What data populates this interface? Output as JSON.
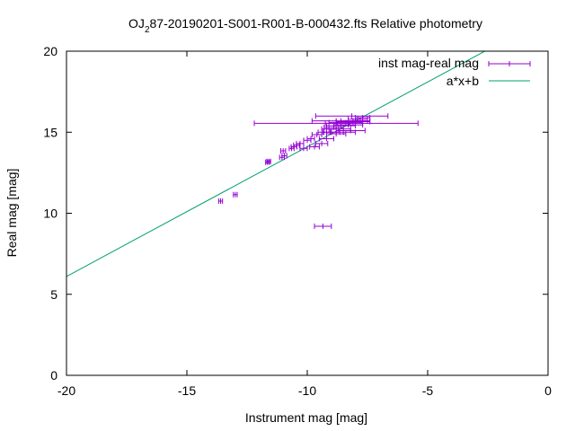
{
  "chart_data": {
    "type": "scatter",
    "title_prefix": "OJ",
    "title_sub": "2",
    "title_suffix": "87-20190201-S001-R001-B-000432.fts Relative photometry",
    "xlabel": "Instrument mag [mag]",
    "ylabel": "Real mag [mag]",
    "xlim": [
      -20,
      0
    ],
    "ylim": [
      0,
      20
    ],
    "xticks": [
      -20,
      -15,
      -10,
      -5,
      0
    ],
    "yticks": [
      0,
      5,
      10,
      15,
      20
    ],
    "xtick_labels": [
      "-20",
      "-15",
      "-10",
      "-5",
      "0"
    ],
    "ytick_labels": [
      "0",
      "5",
      "10",
      "15",
      "20"
    ],
    "legend_position": "top-right",
    "colors": {
      "points": "#9400d3",
      "fit": "#009e73"
    },
    "series": [
      {
        "name": "inst mag-real mag",
        "kind": "errorbars",
        "points": [
          {
            "x": -13.6,
            "y": 10.75,
            "xerr": 0.08
          },
          {
            "x": -12.99,
            "y": 11.15,
            "xerr": 0.08
          },
          {
            "x": -11.65,
            "y": 13.15,
            "xerr": 0.08
          },
          {
            "x": -11.6,
            "y": 13.2,
            "xerr": 0.08
          },
          {
            "x": -11.05,
            "y": 13.45,
            "xerr": 0.1
          },
          {
            "x": -10.95,
            "y": 13.55,
            "xerr": 0.1
          },
          {
            "x": -11.0,
            "y": 13.85,
            "xerr": 0.1
          },
          {
            "x": -10.65,
            "y": 14.0,
            "xerr": 0.1
          },
          {
            "x": -10.55,
            "y": 14.1,
            "xerr": 0.12
          },
          {
            "x": -10.45,
            "y": 14.2,
            "xerr": 0.12
          },
          {
            "x": -10.3,
            "y": 14.3,
            "xerr": 0.15
          },
          {
            "x": -10.15,
            "y": 14.0,
            "xerr": 0.15
          },
          {
            "x": -10.0,
            "y": 14.5,
            "xerr": 0.15
          },
          {
            "x": -9.85,
            "y": 14.6,
            "xerr": 0.15
          },
          {
            "x": -9.7,
            "y": 14.1,
            "xerr": 0.2
          },
          {
            "x": -9.6,
            "y": 14.85,
            "xerr": 0.2
          },
          {
            "x": -9.4,
            "y": 14.3,
            "xerr": 0.25
          },
          {
            "x": -9.3,
            "y": 15.0,
            "xerr": 0.25
          },
          {
            "x": -9.2,
            "y": 14.6,
            "xerr": 0.3
          },
          {
            "x": -9.1,
            "y": 15.2,
            "xerr": 0.3
          },
          {
            "x": -9.0,
            "y": 15.0,
            "xerr": 0.35
          },
          {
            "x": -8.9,
            "y": 15.3,
            "xerr": 0.4
          },
          {
            "x": -8.8,
            "y": 14.9,
            "xerr": 0.4
          },
          {
            "x": -8.75,
            "y": 15.55,
            "xerr": 0.5
          },
          {
            "x": -8.7,
            "y": 15.2,
            "xerr": 0.5
          },
          {
            "x": -8.6,
            "y": 15.4,
            "xerr": 0.6
          },
          {
            "x": -8.5,
            "y": 15.0,
            "xerr": 0.5
          },
          {
            "x": -8.4,
            "y": 15.6,
            "xerr": 0.7
          },
          {
            "x": -8.3,
            "y": 15.45,
            "xerr": 0.6
          },
          {
            "x": -8.2,
            "y": 15.1,
            "xerr": 0.6
          },
          {
            "x": -8.1,
            "y": 15.65,
            "xerr": 0.7
          },
          {
            "x": -8.0,
            "y": 15.7,
            "xerr": 0.6
          },
          {
            "x": -7.9,
            "y": 15.8,
            "xerr": 0.4
          },
          {
            "x": -7.8,
            "y": 15.7,
            "xerr": 0.3
          },
          {
            "x": -7.7,
            "y": 15.9,
            "xerr": 0.3
          },
          {
            "x": -8.8,
            "y": 15.55,
            "xerr": 3.4
          },
          {
            "x": -8.15,
            "y": 16.0,
            "xerr": 1.5
          },
          {
            "x": -8.8,
            "y": 15.7,
            "xerr": 1.0
          },
          {
            "x": -9.35,
            "y": 9.2,
            "xerr": 0.35
          }
        ]
      },
      {
        "name": "a*x+b",
        "kind": "line",
        "slope": 0.8,
        "intercept": 22.1
      }
    ]
  }
}
